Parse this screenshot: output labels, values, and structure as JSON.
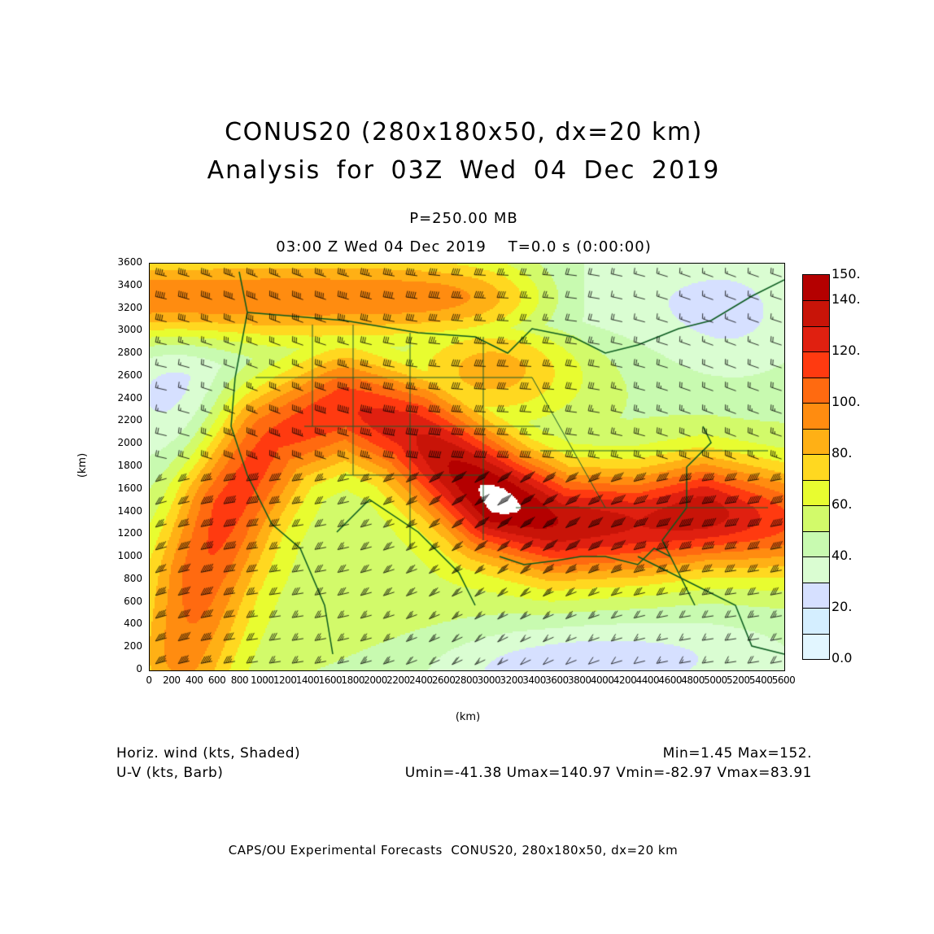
{
  "header": {
    "title_line1": "CONUS20 (280x180x50, dx=20 km)",
    "title_line2": "Analysis for 03Z Wed 04 Dec 2019",
    "level": "P=250.00 MB",
    "time": "03:00 Z Wed 04 Dec 2019    T=0.0 s (0:00:00)"
  },
  "axes": {
    "xlabel": "(km)",
    "ylabel": "(km)",
    "xticks": [
      "0",
      "200",
      "400",
      "600",
      "800",
      "1000",
      "1200",
      "1400",
      "1600",
      "1800",
      "2000",
      "2200",
      "2400",
      "2600",
      "2800",
      "3000",
      "3200",
      "3400",
      "3600",
      "3800",
      "4000",
      "4200",
      "4400",
      "4600",
      "4800",
      "5000",
      "5200",
      "5400",
      "5600"
    ],
    "yticks": [
      "0",
      "200",
      "400",
      "600",
      "800",
      "1000",
      "1200",
      "1400",
      "1600",
      "1800",
      "2000",
      "2200",
      "2400",
      "2600",
      "2800",
      "3000",
      "3200",
      "3400",
      "3600"
    ]
  },
  "colorbar": {
    "labels": [
      "150.",
      "140.",
      "120.",
      "100.",
      "80.",
      "60.",
      "40.",
      "20.",
      "0.0"
    ],
    "label_values": [
      150,
      140,
      120,
      100,
      80,
      60,
      40,
      20,
      0
    ],
    "levels": [
      0,
      10,
      20,
      30,
      40,
      50,
      60,
      70,
      80,
      90,
      100,
      110,
      120,
      130,
      140,
      150
    ],
    "colors": [
      "#e2f6ff",
      "#d4eeff",
      "#d6e0ff",
      "#dafdd2",
      "#c8fab0",
      "#d2fa6a",
      "#e8fc30",
      "#ffd820",
      "#ffb015",
      "#ff8c10",
      "#ff6a10",
      "#ff3a10",
      "#e02010",
      "#c81408",
      "#b40000"
    ],
    "overflow_color": "#ffffff"
  },
  "map": {
    "border_color": "#0a5a1e",
    "barb_color": "#000000"
  },
  "footer": {
    "field1": "Horiz. wind (kts, Shaded)",
    "field2": "U-V (kts, Barb)",
    "minmax": "Min=1.45 Max=152.",
    "uv_stats": "Umin=-41.38 Umax=140.97 Vmin=-82.97 Vmax=83.91",
    "credit": "CAPS/OU Experimental Forecasts  CONUS20, 280x180x50, dx=20 km"
  }
}
